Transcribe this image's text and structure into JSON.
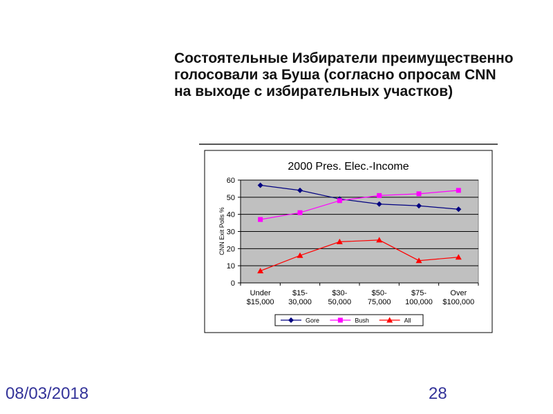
{
  "slide": {
    "title_lines": [
      "Состоятельные Избиратели преимущественно",
      "голосовали за Буша (согласно опросам CNN",
      "на выходе с избирательных участков)"
    ],
    "date": "08/03/2018",
    "page_number": "28"
  },
  "chart_data": {
    "type": "line",
    "title": "2000 Pres. Elec.-Income",
    "ylabel": "CNN Exit Polls %",
    "xlabel": "",
    "ylim": [
      0,
      60
    ],
    "yticks": [
      "0",
      "10",
      "20",
      "30",
      "40",
      "50",
      "60"
    ],
    "categories": [
      [
        "Under",
        "$15,000"
      ],
      [
        "$15-",
        "30,000"
      ],
      [
        "$30-",
        "50,000"
      ],
      [
        "$50-",
        "75,000"
      ],
      [
        "$75-",
        "100,000"
      ],
      [
        "Over",
        "$100,000"
      ]
    ],
    "series": [
      {
        "name": "Gore",
        "color": "#000080",
        "marker": "diamond",
        "values": [
          57,
          54,
          49,
          46,
          45,
          43
        ]
      },
      {
        "name": "Bush",
        "color": "#ff00ff",
        "marker": "square",
        "values": [
          37,
          41,
          48,
          51,
          52,
          54
        ]
      },
      {
        "name": "All",
        "color": "#ff0000",
        "marker": "triangle",
        "values": [
          7,
          16,
          24,
          25,
          13,
          15
        ]
      }
    ],
    "grid": true,
    "legend_position": "bottom",
    "plot_background": "#c0c0c0"
  }
}
